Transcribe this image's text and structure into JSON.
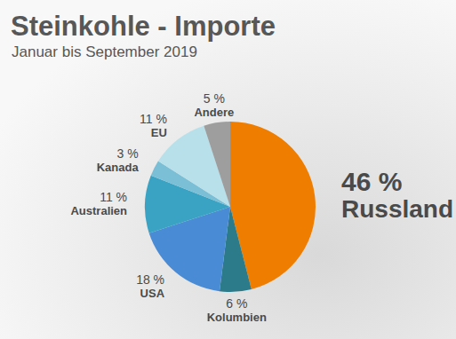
{
  "chart_data": {
    "type": "pie",
    "title": "Steinkohle - Importe",
    "subtitle": "Januar bis September 2019",
    "categories": [
      "Russland",
      "Kolumbien",
      "USA",
      "Australien",
      "Kanada",
      "EU",
      "Andere"
    ],
    "values": [
      46,
      6,
      18,
      11,
      3,
      11,
      5
    ],
    "value_labels": [
      "46 %",
      "6 %",
      "18 %",
      "11 %",
      "3 %",
      "11 %",
      "5 %"
    ],
    "colors": [
      "#ef7d00",
      "#2b7b8a",
      "#4a8bd6",
      "#3aa3c4",
      "#7bbfd6",
      "#b8e0ea",
      "#9e9e9e"
    ],
    "data_labels": true
  }
}
